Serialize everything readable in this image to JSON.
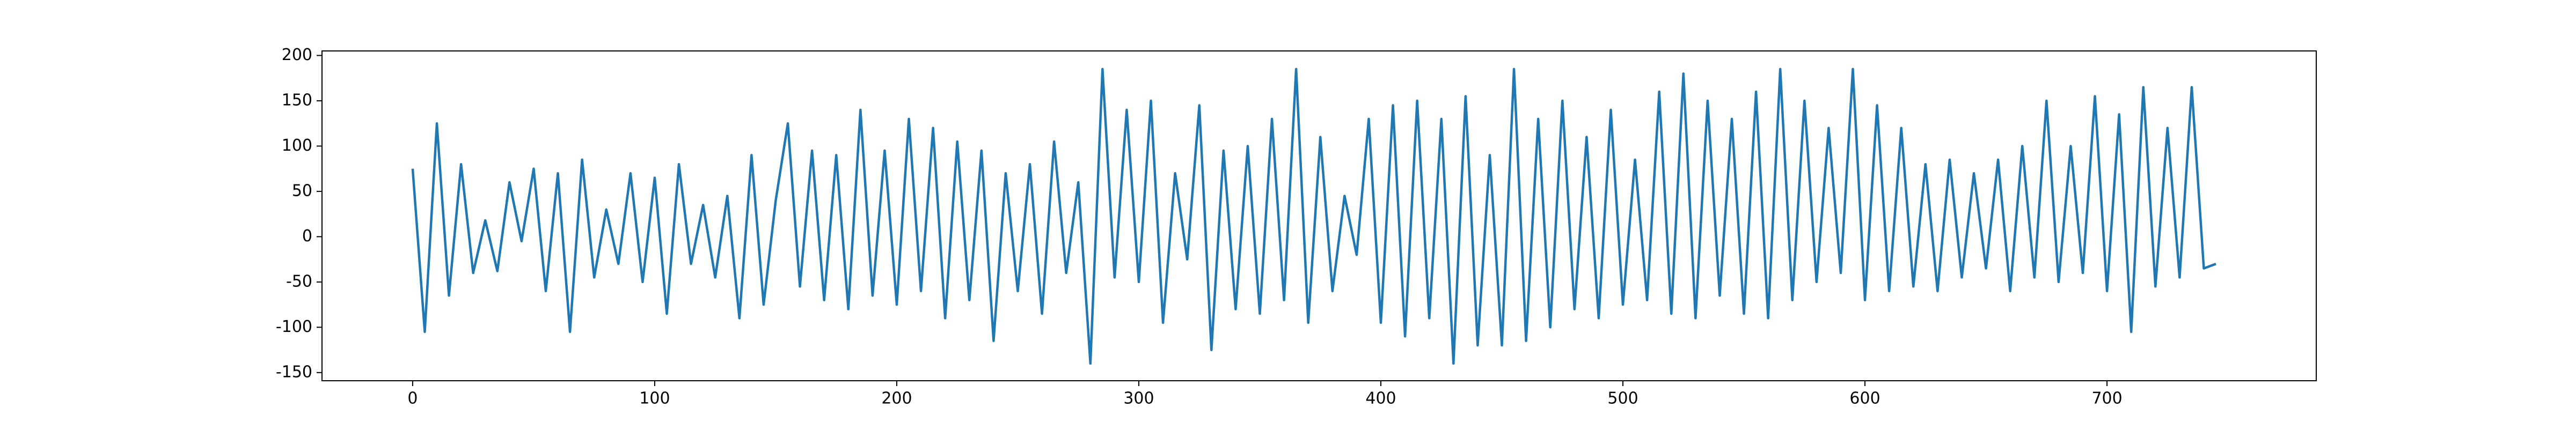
{
  "chart_data": {
    "type": "line",
    "color": "#1f77b4",
    "x": [
      0,
      5,
      10,
      15,
      20,
      25,
      30,
      35,
      40,
      45,
      50,
      55,
      60,
      65,
      70,
      75,
      80,
      85,
      90,
      95,
      100,
      105,
      110,
      115,
      120,
      125,
      130,
      135,
      140,
      145,
      150,
      155,
      160,
      165,
      170,
      175,
      180,
      185,
      190,
      195,
      200,
      205,
      210,
      215,
      220,
      225,
      230,
      235,
      240,
      245,
      250,
      255,
      260,
      265,
      270,
      275,
      280,
      285,
      290,
      295,
      300,
      305,
      310,
      315,
      320,
      325,
      330,
      335,
      340,
      345,
      350,
      355,
      360,
      365,
      370,
      375,
      380,
      385,
      390,
      395,
      400,
      405,
      410,
      415,
      420,
      425,
      430,
      435,
      440,
      445,
      450,
      455,
      460,
      465,
      470,
      475,
      480,
      485,
      490,
      495,
      500,
      505,
      510,
      515,
      520,
      525,
      530,
      535,
      540,
      545,
      550,
      555,
      560,
      565,
      570,
      575,
      580,
      585,
      590,
      595,
      600,
      605,
      610,
      615,
      620,
      625,
      630,
      635,
      640,
      645,
      650,
      655,
      660,
      665,
      670,
      675,
      680,
      685,
      690,
      695,
      700,
      705,
      710,
      715,
      720,
      725,
      730,
      735,
      740,
      745
    ],
    "values": [
      75,
      -105,
      125,
      -65,
      80,
      -40,
      18,
      -38,
      60,
      -5,
      75,
      -60,
      70,
      -105,
      85,
      -45,
      30,
      -30,
      70,
      -50,
      65,
      -85,
      80,
      -30,
      35,
      -45,
      45,
      -90,
      90,
      -75,
      40,
      125,
      -55,
      95,
      -70,
      90,
      -80,
      140,
      -65,
      95,
      -75,
      130,
      -60,
      120,
      -90,
      105,
      -70,
      95,
      -115,
      70,
      -60,
      80,
      -85,
      105,
      -40,
      60,
      -140,
      185,
      -45,
      140,
      -50,
      150,
      -95,
      70,
      -25,
      145,
      -125,
      95,
      -80,
      100,
      -85,
      130,
      -70,
      185,
      -95,
      110,
      -60,
      45,
      -20,
      130,
      -95,
      145,
      -110,
      150,
      -90,
      130,
      -140,
      155,
      -120,
      90,
      -120,
      185,
      -115,
      130,
      -100,
      150,
      -80,
      110,
      -90,
      140,
      -75,
      85,
      -70,
      160,
      -85,
      180,
      -90,
      150,
      -65,
      130,
      -85,
      160,
      -90,
      185,
      -70,
      150,
      -50,
      120,
      -40,
      185,
      -70,
      145,
      -60,
      120,
      -55,
      80,
      -60,
      85,
      -45,
      70,
      -35,
      85,
      -60,
      100,
      -45,
      150,
      -50,
      100,
      -40,
      155,
      -60,
      135,
      -105,
      165,
      -55,
      120,
      -45,
      165,
      -35,
      -30
    ],
    "xlim": [
      -37.45,
      786.45
    ],
    "ylim": [
      -159,
      205
    ],
    "xticks": [
      0,
      100,
      200,
      300,
      400,
      500,
      600,
      700
    ],
    "yticks": [
      -150,
      -100,
      -50,
      0,
      50,
      100,
      150,
      200
    ]
  }
}
